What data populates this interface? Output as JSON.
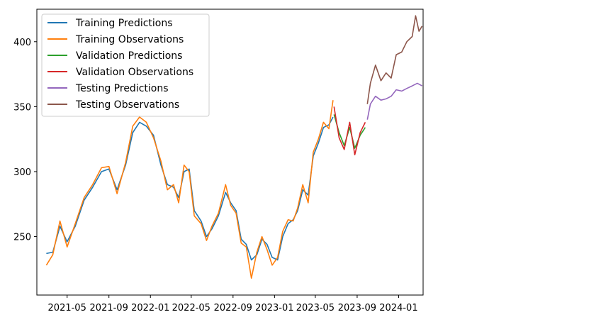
{
  "chart_data": {
    "type": "line",
    "title": "",
    "xlabel": "",
    "ylabel": "",
    "x_range": [
      "2021-02-01",
      "2024-03-13"
    ],
    "ylim": [
      205,
      425
    ],
    "x_ticks": [
      {
        "date": "2021-05-01",
        "label": "2021-05"
      },
      {
        "date": "2021-09-01",
        "label": "2021-09"
      },
      {
        "date": "2022-01-01",
        "label": "2022-01"
      },
      {
        "date": "2022-05-01",
        "label": "2022-05"
      },
      {
        "date": "2022-09-01",
        "label": "2022-09"
      },
      {
        "date": "2023-01-01",
        "label": "2023-01"
      },
      {
        "date": "2023-05-01",
        "label": "2023-05"
      },
      {
        "date": "2023-09-01",
        "label": "2023-09"
      },
      {
        "date": "2024-01-01",
        "label": "2024-01"
      }
    ],
    "y_ticks": [
      250,
      300,
      350,
      400
    ],
    "grid": false,
    "legend_position": "upper-left",
    "series": [
      {
        "name": "Training Predictions",
        "color": "#1f77b4",
        "points": [
          [
            "2021-03-01",
            237
          ],
          [
            "2021-03-20",
            238
          ],
          [
            "2021-04-10",
            258
          ],
          [
            "2021-05-01",
            246
          ],
          [
            "2021-05-25",
            258
          ],
          [
            "2021-06-20",
            278
          ],
          [
            "2021-07-15",
            288
          ],
          [
            "2021-08-10",
            300
          ],
          [
            "2021-09-01",
            302
          ],
          [
            "2021-09-25",
            286
          ],
          [
            "2021-10-20",
            305
          ],
          [
            "2021-11-10",
            330
          ],
          [
            "2021-11-30",
            338
          ],
          [
            "2021-12-20",
            335
          ],
          [
            "2022-01-10",
            328
          ],
          [
            "2022-02-01",
            305
          ],
          [
            "2022-02-20",
            290
          ],
          [
            "2022-03-10",
            288
          ],
          [
            "2022-03-25",
            280
          ],
          [
            "2022-04-10",
            300
          ],
          [
            "2022-04-25",
            302
          ],
          [
            "2022-05-10",
            270
          ],
          [
            "2022-05-30",
            262
          ],
          [
            "2022-06-15",
            250
          ],
          [
            "2022-07-01",
            256
          ],
          [
            "2022-07-20",
            266
          ],
          [
            "2022-08-10",
            284
          ],
          [
            "2022-08-25",
            276
          ],
          [
            "2022-09-10",
            270
          ],
          [
            "2022-09-25",
            248
          ],
          [
            "2022-10-10",
            244
          ],
          [
            "2022-10-25",
            232
          ],
          [
            "2022-11-10",
            236
          ],
          [
            "2022-11-25",
            248
          ],
          [
            "2022-12-10",
            244
          ],
          [
            "2022-12-25",
            234
          ],
          [
            "2023-01-10",
            232
          ],
          [
            "2023-01-25",
            250
          ],
          [
            "2023-02-10",
            260
          ],
          [
            "2023-02-25",
            263
          ],
          [
            "2023-03-10",
            270
          ],
          [
            "2023-03-25",
            286
          ],
          [
            "2023-04-10",
            282
          ],
          [
            "2023-04-25",
            312
          ],
          [
            "2023-05-10",
            322
          ],
          [
            "2023-05-25",
            334
          ],
          [
            "2023-06-10",
            336
          ],
          [
            "2023-06-22",
            342
          ]
        ]
      },
      {
        "name": "Training Observations",
        "color": "#ff7f0e",
        "points": [
          [
            "2021-03-01",
            228
          ],
          [
            "2021-03-20",
            236
          ],
          [
            "2021-04-10",
            262
          ],
          [
            "2021-05-01",
            242
          ],
          [
            "2021-05-25",
            260
          ],
          [
            "2021-06-20",
            280
          ],
          [
            "2021-07-15",
            290
          ],
          [
            "2021-08-10",
            303
          ],
          [
            "2021-09-01",
            304
          ],
          [
            "2021-09-25",
            283
          ],
          [
            "2021-10-20",
            307
          ],
          [
            "2021-11-10",
            335
          ],
          [
            "2021-11-30",
            342
          ],
          [
            "2021-12-20",
            338
          ],
          [
            "2022-01-10",
            326
          ],
          [
            "2022-02-01",
            308
          ],
          [
            "2022-02-20",
            286
          ],
          [
            "2022-03-10",
            290
          ],
          [
            "2022-03-25",
            276
          ],
          [
            "2022-04-10",
            305
          ],
          [
            "2022-04-25",
            300
          ],
          [
            "2022-05-10",
            266
          ],
          [
            "2022-05-30",
            260
          ],
          [
            "2022-06-15",
            247
          ],
          [
            "2022-07-01",
            258
          ],
          [
            "2022-07-20",
            268
          ],
          [
            "2022-08-10",
            290
          ],
          [
            "2022-08-25",
            274
          ],
          [
            "2022-09-10",
            268
          ],
          [
            "2022-09-25",
            245
          ],
          [
            "2022-10-10",
            242
          ],
          [
            "2022-10-25",
            218
          ],
          [
            "2022-11-10",
            238
          ],
          [
            "2022-11-25",
            250
          ],
          [
            "2022-12-10",
            240
          ],
          [
            "2022-12-25",
            228
          ],
          [
            "2023-01-10",
            234
          ],
          [
            "2023-01-25",
            254
          ],
          [
            "2023-02-10",
            263
          ],
          [
            "2023-02-25",
            262
          ],
          [
            "2023-03-10",
            272
          ],
          [
            "2023-03-25",
            290
          ],
          [
            "2023-04-10",
            276
          ],
          [
            "2023-04-25",
            315
          ],
          [
            "2023-05-10",
            325
          ],
          [
            "2023-05-25",
            338
          ],
          [
            "2023-06-10",
            333
          ],
          [
            "2023-06-22",
            355
          ]
        ]
      },
      {
        "name": "Validation Predictions",
        "color": "#2ca02c",
        "points": [
          [
            "2023-06-25",
            344
          ],
          [
            "2023-07-10",
            330
          ],
          [
            "2023-07-25",
            320
          ],
          [
            "2023-08-10",
            334
          ],
          [
            "2023-08-25",
            318
          ],
          [
            "2023-09-10",
            328
          ],
          [
            "2023-09-25",
            334
          ]
        ]
      },
      {
        "name": "Validation Observations",
        "color": "#d62728",
        "points": [
          [
            "2023-06-25",
            350
          ],
          [
            "2023-07-10",
            326
          ],
          [
            "2023-07-25",
            317
          ],
          [
            "2023-08-10",
            338
          ],
          [
            "2023-08-25",
            313
          ],
          [
            "2023-09-10",
            330
          ],
          [
            "2023-09-25",
            338
          ]
        ]
      },
      {
        "name": "Testing Predictions",
        "color": "#9467bd",
        "points": [
          [
            "2023-10-01",
            340
          ],
          [
            "2023-10-10",
            352
          ],
          [
            "2023-10-25",
            358
          ],
          [
            "2023-11-10",
            355
          ],
          [
            "2023-11-25",
            356
          ],
          [
            "2023-12-10",
            358
          ],
          [
            "2023-12-25",
            363
          ],
          [
            "2024-01-10",
            362
          ],
          [
            "2024-01-25",
            364
          ],
          [
            "2024-02-10",
            366
          ],
          [
            "2024-02-25",
            368
          ],
          [
            "2024-03-10",
            366
          ]
        ]
      },
      {
        "name": "Testing Observations",
        "color": "#8c564b",
        "points": [
          [
            "2023-10-01",
            352
          ],
          [
            "2023-10-10",
            368
          ],
          [
            "2023-10-25",
            382
          ],
          [
            "2023-11-10",
            370
          ],
          [
            "2023-11-25",
            376
          ],
          [
            "2023-12-10",
            372
          ],
          [
            "2023-12-25",
            390
          ],
          [
            "2024-01-10",
            392
          ],
          [
            "2024-01-25",
            400
          ],
          [
            "2024-02-10",
            404
          ],
          [
            "2024-02-20",
            420
          ],
          [
            "2024-03-01",
            408
          ],
          [
            "2024-03-10",
            412
          ]
        ]
      }
    ]
  }
}
